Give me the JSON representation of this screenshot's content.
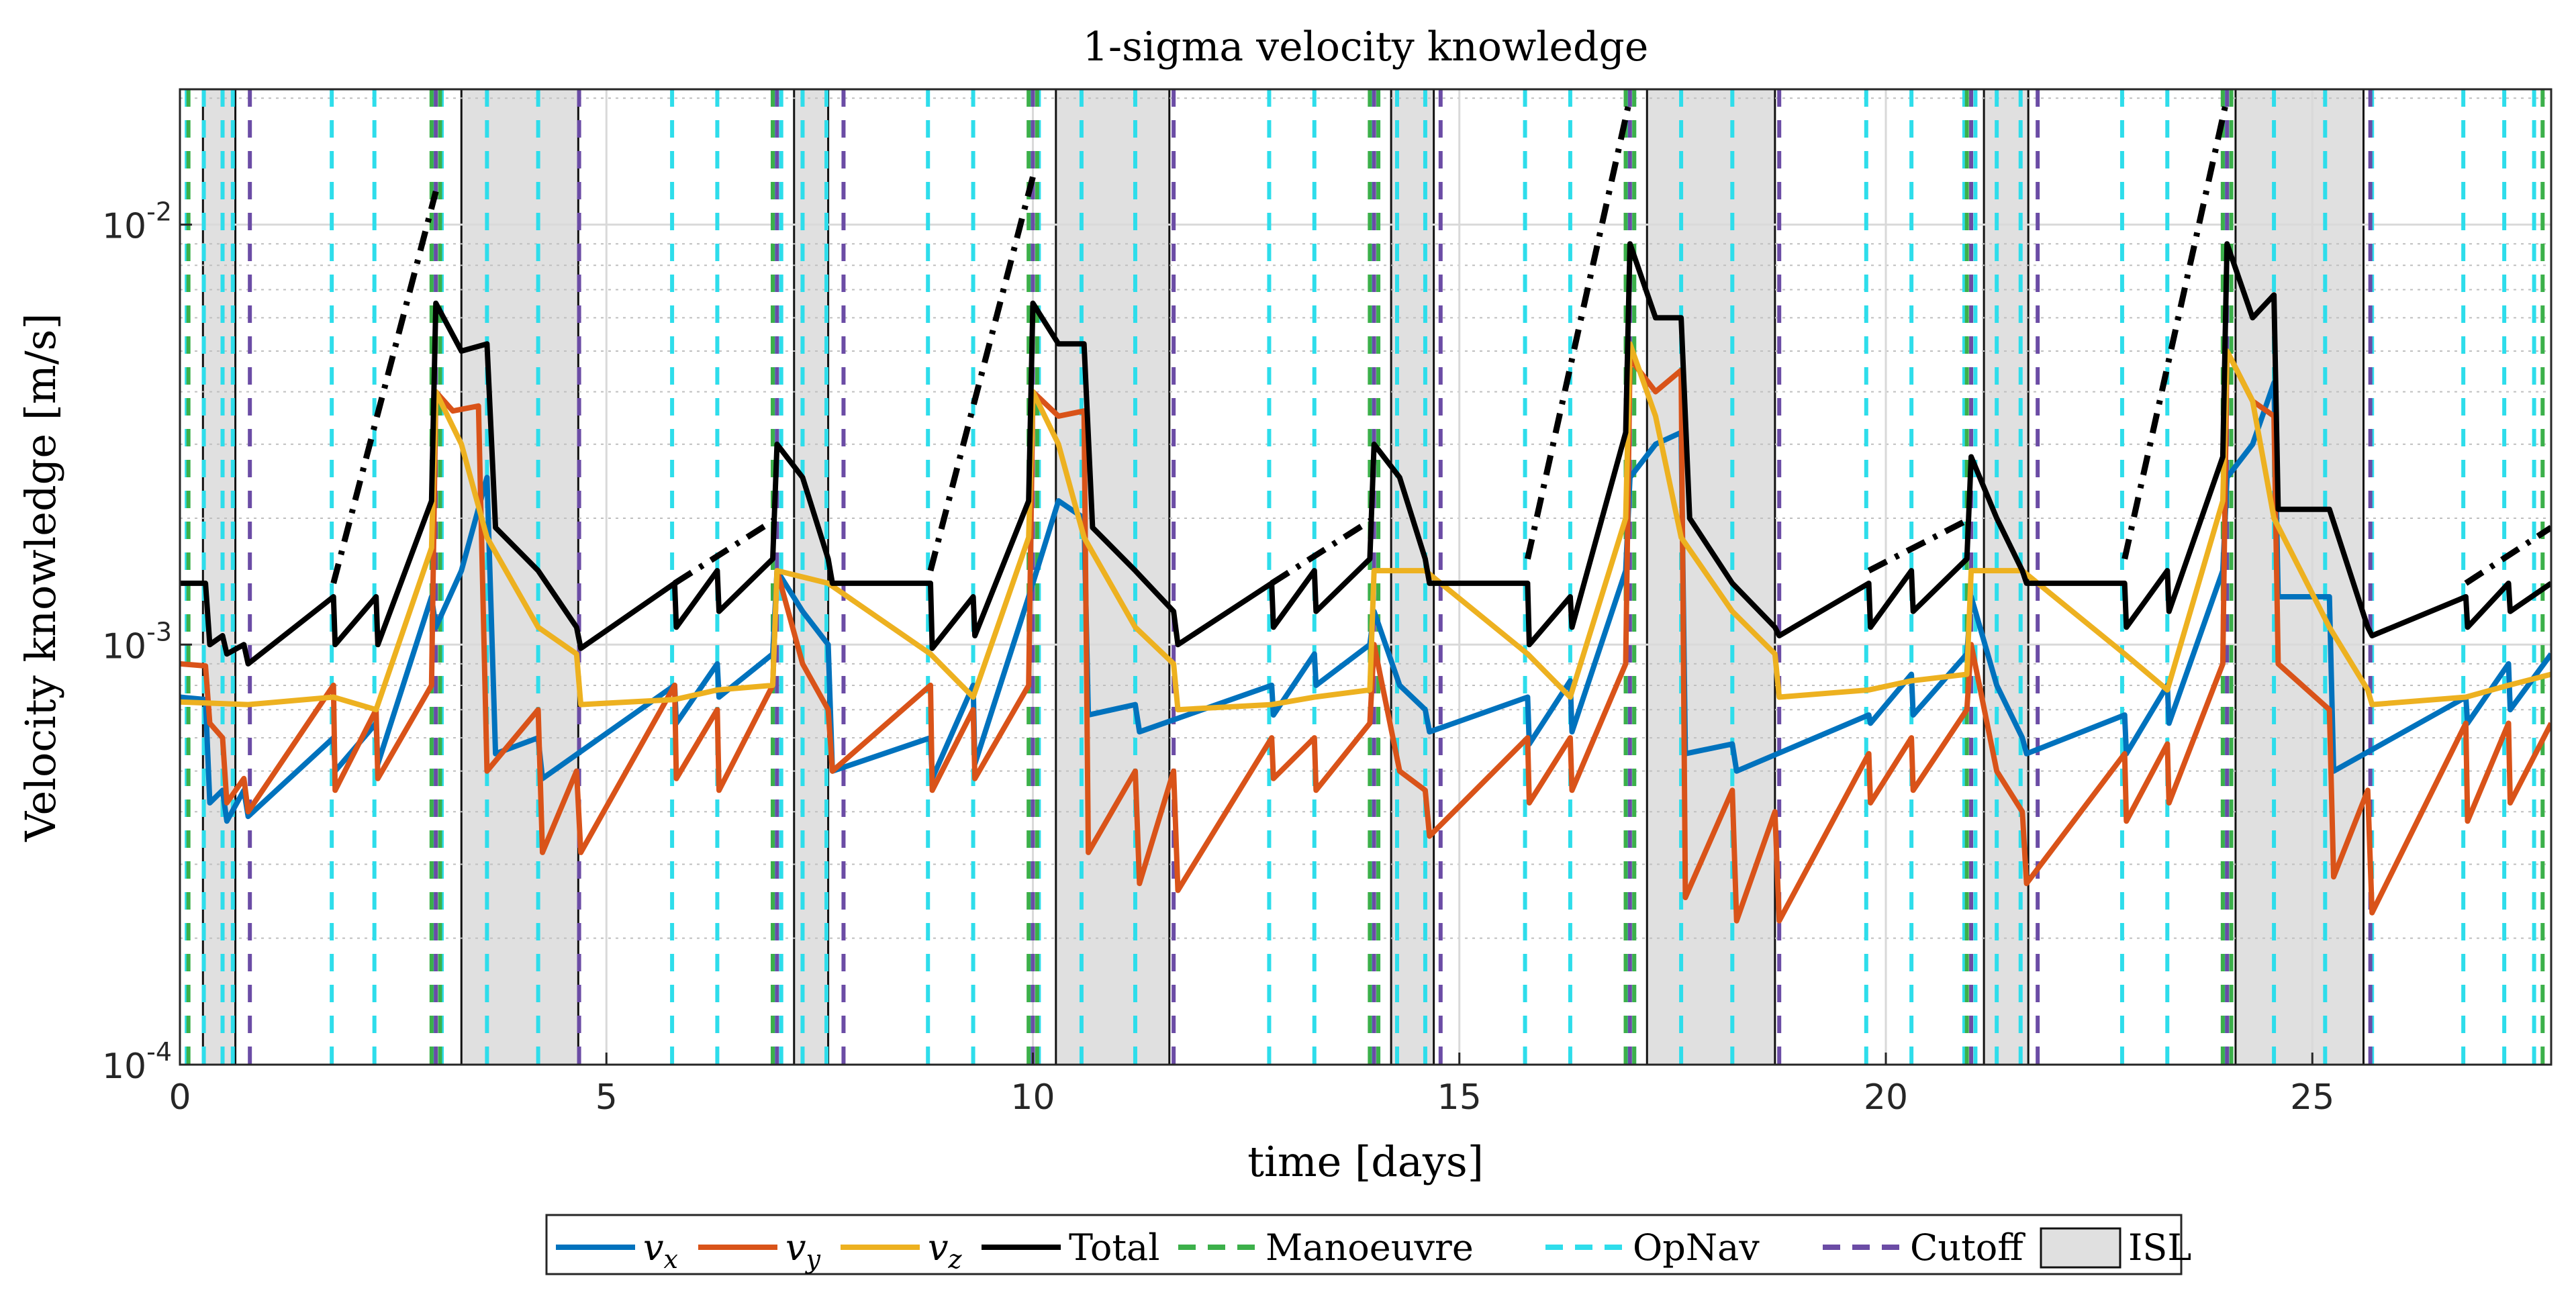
{
  "chart_data": {
    "type": "line",
    "title": "1-sigma velocity knowledge",
    "xlabel": "time [days]",
    "ylabel": "Velocity knowledge [m/s]",
    "xlim": [
      0,
      27.8
    ],
    "ylim": [
      0.0001,
      0.021
    ],
    "yscale": "log",
    "grid": true,
    "x_ticks": [
      0,
      5,
      10,
      15,
      20,
      25
    ],
    "x_tick_labels": [
      "0",
      "5",
      "10",
      "15",
      "20",
      "25"
    ],
    "y_ticks": [
      0.0001,
      0.001,
      0.01
    ],
    "y_tick_labels": [
      {
        "base": "10",
        "exp": "-4"
      },
      {
        "base": "10",
        "exp": "-3"
      },
      {
        "base": "10",
        "exp": "-2"
      }
    ],
    "legend": {
      "placement": "bottom-outside",
      "entries": [
        {
          "key": "vx",
          "label": "v",
          "sub": "x",
          "color": "#0072BD",
          "style": "solid"
        },
        {
          "key": "vy",
          "label": "v",
          "sub": "y",
          "color": "#D95319",
          "style": "solid"
        },
        {
          "key": "vz",
          "label": "v",
          "sub": "z",
          "color": "#EDB120",
          "style": "solid"
        },
        {
          "key": "total",
          "label": "Total",
          "color": "#000000",
          "style": "solid"
        },
        {
          "key": "manoeuvre",
          "label": "Manoeuvre",
          "color": "#3CB04A",
          "style": "dashed"
        },
        {
          "key": "opnav",
          "label": "OpNav",
          "color": "#2EDDEB",
          "style": "dashed"
        },
        {
          "key": "cutoff",
          "label": "Cutoff",
          "color": "#6B4CA5",
          "style": "dashed"
        },
        {
          "key": "isl",
          "label": "ISL",
          "color": "#E0E0E0",
          "style": "patch"
        }
      ]
    },
    "isl_windows": [
      [
        0.27,
        0.65
      ],
      [
        3.3,
        4.67
      ],
      [
        7.2,
        7.6
      ],
      [
        10.27,
        11.6
      ],
      [
        14.2,
        14.7
      ],
      [
        17.2,
        18.7
      ],
      [
        21.15,
        21.67
      ],
      [
        24.1,
        25.6
      ]
    ],
    "opnav_times": [
      0.08,
      0.28,
      0.5,
      0.62,
      1.78,
      2.28,
      2.97,
      3.07,
      3.6,
      4.2,
      5.77,
      6.3,
      6.97,
      7.05,
      7.3,
      7.58,
      8.77,
      9.3,
      9.97,
      10.07,
      10.57,
      11.2,
      12.77,
      13.3,
      13.97,
      14.05,
      14.27,
      14.6,
      15.77,
      16.3,
      16.97,
      17.05,
      17.6,
      18.2,
      19.77,
      20.3,
      20.92,
      21.05,
      21.3,
      21.58,
      22.77,
      23.3,
      23.97,
      24.05,
      24.55,
      25.15,
      25.7,
      26.77,
      27.25,
      27.6
    ],
    "manoeuvre_times": [
      0.1,
      2.95,
      3.05,
      6.95,
      9.95,
      10.05,
      13.95,
      14.05,
      16.95,
      17.05,
      20.95,
      23.95,
      24.05,
      27.7
    ],
    "cutoff_times": [
      0.82,
      3.0,
      4.68,
      7.0,
      7.78,
      10.0,
      11.65,
      14.0,
      14.78,
      17.0,
      18.75,
      21.0,
      21.78,
      24.0,
      25.68
    ],
    "series": [
      {
        "name": "vx",
        "x": [
          0,
          0.3,
          0.35,
          0.5,
          0.55,
          0.75,
          0.8,
          1.8,
          1.82,
          2.3,
          2.32,
          2.95,
          3.0,
          3.3,
          3.6,
          3.7,
          4.2,
          4.25,
          5.8,
          5.82,
          6.3,
          6.32,
          6.95,
          7.0,
          7.3,
          7.6,
          7.65,
          8.8,
          8.82,
          9.3,
          9.32,
          9.95,
          10.0,
          10.3,
          10.6,
          10.65,
          11.2,
          11.25,
          12.8,
          12.82,
          13.3,
          13.32,
          13.95,
          14.0,
          14.3,
          14.6,
          14.65,
          15.8,
          15.82,
          16.3,
          16.32,
          16.95,
          17.0,
          17.3,
          17.6,
          17.65,
          18.2,
          18.25,
          19.8,
          19.82,
          20.3,
          20.32,
          20.95,
          21.0,
          21.3,
          21.6,
          21.65,
          22.8,
          22.82,
          23.3,
          23.32,
          23.95,
          24.0,
          24.3,
          24.55,
          24.6,
          25.2,
          25.25,
          26.8,
          26.82,
          27.3,
          27.32,
          27.8
        ],
        "y": [
          0.00075,
          0.00074,
          0.00042,
          0.00045,
          0.00038,
          0.00045,
          0.00039,
          0.0006,
          0.0005,
          0.00065,
          0.00052,
          0.0013,
          0.0011,
          0.0015,
          0.0025,
          0.00055,
          0.0006,
          0.00048,
          0.0008,
          0.00065,
          0.0009,
          0.00075,
          0.00095,
          0.0015,
          0.0012,
          0.001,
          0.0005,
          0.0006,
          0.00048,
          0.0008,
          0.00052,
          0.0013,
          0.0014,
          0.0022,
          0.002,
          0.00068,
          0.00072,
          0.00062,
          0.0008,
          0.00068,
          0.00095,
          0.0008,
          0.001,
          0.0012,
          0.0008,
          0.0007,
          0.00062,
          0.00075,
          0.00058,
          0.00082,
          0.00062,
          0.0015,
          0.0025,
          0.003,
          0.0032,
          0.00055,
          0.00058,
          0.0005,
          0.00068,
          0.00065,
          0.00085,
          0.00068,
          0.00095,
          0.0013,
          0.0008,
          0.0006,
          0.00055,
          0.00068,
          0.00055,
          0.0008,
          0.00065,
          0.0015,
          0.0025,
          0.003,
          0.0042,
          0.0013,
          0.0013,
          0.0005,
          0.00075,
          0.00065,
          0.0009,
          0.0007,
          0.00095
        ]
      },
      {
        "name": "vy",
        "x": [
          0,
          0.3,
          0.35,
          0.5,
          0.55,
          0.75,
          0.8,
          1.8,
          1.82,
          2.3,
          2.32,
          2.95,
          3.0,
          3.2,
          3.5,
          3.6,
          4.2,
          4.25,
          4.65,
          4.7,
          5.8,
          5.82,
          6.3,
          6.32,
          6.95,
          7.0,
          7.3,
          7.6,
          7.65,
          8.8,
          8.82,
          9.3,
          9.32,
          9.95,
          10.0,
          10.3,
          10.6,
          10.65,
          11.2,
          11.25,
          11.65,
          11.7,
          12.8,
          12.82,
          13.3,
          13.32,
          13.95,
          14.0,
          14.3,
          14.6,
          14.65,
          15.8,
          15.82,
          16.3,
          16.32,
          16.95,
          17.0,
          17.3,
          17.6,
          17.65,
          18.2,
          18.25,
          18.7,
          18.75,
          19.8,
          19.82,
          20.3,
          20.32,
          20.95,
          21.0,
          21.3,
          21.6,
          21.65,
          22.8,
          22.82,
          23.3,
          23.32,
          23.95,
          24.0,
          24.3,
          24.55,
          24.6,
          25.2,
          25.25,
          25.65,
          25.7,
          26.8,
          26.82,
          27.3,
          27.32,
          27.8
        ],
        "y": [
          0.0009,
          0.00089,
          0.00065,
          0.0006,
          0.00042,
          0.00048,
          0.0004,
          0.0008,
          0.00045,
          0.0007,
          0.00048,
          0.0008,
          0.004,
          0.0036,
          0.0037,
          0.0005,
          0.0007,
          0.00032,
          0.0005,
          0.00032,
          0.0008,
          0.00048,
          0.0007,
          0.00045,
          0.0008,
          0.0015,
          0.0009,
          0.0007,
          0.0005,
          0.0008,
          0.00045,
          0.0007,
          0.00048,
          0.0008,
          0.004,
          0.0035,
          0.0036,
          0.00032,
          0.0005,
          0.00027,
          0.0005,
          0.00026,
          0.0006,
          0.00048,
          0.0006,
          0.00045,
          0.00065,
          0.001,
          0.0005,
          0.00045,
          0.00035,
          0.0006,
          0.00042,
          0.0006,
          0.00045,
          0.0009,
          0.0048,
          0.004,
          0.0045,
          0.00025,
          0.00045,
          0.00022,
          0.0004,
          0.00022,
          0.00055,
          0.00042,
          0.0006,
          0.00045,
          0.0007,
          0.001,
          0.0005,
          0.0004,
          0.00027,
          0.00055,
          0.00038,
          0.00058,
          0.00042,
          0.0009,
          0.005,
          0.0038,
          0.0035,
          0.0009,
          0.0007,
          0.00028,
          0.00045,
          0.00023,
          0.00065,
          0.00038,
          0.00065,
          0.00042,
          0.00065
        ]
      },
      {
        "name": "vz",
        "x": [
          0,
          0.8,
          1.8,
          2.3,
          2.95,
          3.0,
          3.3,
          3.6,
          4.2,
          4.65,
          4.7,
          5.8,
          6.3,
          6.95,
          7.0,
          7.6,
          8.8,
          9.3,
          9.95,
          10.0,
          10.3,
          10.6,
          11.2,
          11.65,
          11.7,
          12.8,
          13.3,
          13.95,
          14.0,
          14.6,
          15.8,
          16.3,
          16.95,
          17.0,
          17.3,
          17.6,
          18.2,
          18.7,
          18.75,
          19.8,
          20.3,
          20.95,
          21.0,
          21.6,
          22.8,
          23.3,
          23.95,
          24.0,
          24.3,
          24.55,
          25.2,
          25.65,
          25.7,
          26.8,
          27.3,
          27.8
        ],
        "y": [
          0.00073,
          0.00072,
          0.00075,
          0.0007,
          0.0017,
          0.004,
          0.003,
          0.0018,
          0.0011,
          0.00095,
          0.00072,
          0.00074,
          0.00078,
          0.0008,
          0.0015,
          0.0014,
          0.00095,
          0.00075,
          0.0018,
          0.004,
          0.003,
          0.0018,
          0.0011,
          0.0009,
          0.0007,
          0.00072,
          0.00075,
          0.00078,
          0.0015,
          0.0015,
          0.00095,
          0.00075,
          0.002,
          0.0052,
          0.0035,
          0.0018,
          0.0012,
          0.00095,
          0.00075,
          0.00078,
          0.00082,
          0.00085,
          0.0015,
          0.0015,
          0.00095,
          0.00078,
          0.0022,
          0.005,
          0.0038,
          0.002,
          0.0011,
          0.00078,
          0.00072,
          0.00075,
          0.0008,
          0.00085
        ]
      },
      {
        "name": "Total",
        "x": [
          0,
          0.3,
          0.35,
          0.5,
          0.55,
          0.75,
          0.8,
          1.8,
          1.82,
          2.3,
          2.32,
          2.95,
          3.0,
          3.3,
          3.6,
          3.7,
          4.2,
          4.65,
          4.7,
          5.8,
          5.82,
          6.3,
          6.32,
          6.95,
          7.0,
          7.3,
          7.6,
          7.65,
          8.8,
          8.82,
          9.3,
          9.32,
          9.95,
          10.0,
          10.3,
          10.6,
          10.7,
          11.2,
          11.65,
          11.7,
          12.8,
          12.82,
          13.3,
          13.32,
          13.95,
          14.0,
          14.3,
          14.6,
          14.65,
          15.8,
          15.82,
          16.3,
          16.32,
          16.95,
          17.0,
          17.3,
          17.6,
          17.7,
          18.2,
          18.7,
          18.75,
          19.8,
          19.82,
          20.3,
          20.32,
          20.95,
          21.0,
          21.3,
          21.6,
          21.65,
          22.8,
          22.82,
          23.3,
          23.32,
          23.95,
          24.0,
          24.3,
          24.55,
          24.6,
          25.2,
          25.65,
          25.7,
          26.8,
          26.82,
          27.3,
          27.32,
          27.8
        ],
        "y": [
          0.0014,
          0.0014,
          0.001,
          0.00105,
          0.00095,
          0.001,
          0.0009,
          0.0013,
          0.001,
          0.0013,
          0.001,
          0.0022,
          0.0065,
          0.005,
          0.0052,
          0.0019,
          0.0015,
          0.0011,
          0.00098,
          0.0014,
          0.0011,
          0.0015,
          0.0012,
          0.0016,
          0.003,
          0.0025,
          0.0016,
          0.0014,
          0.0014,
          0.00098,
          0.0013,
          0.00105,
          0.0022,
          0.0065,
          0.0052,
          0.0052,
          0.0019,
          0.0015,
          0.0012,
          0.001,
          0.0014,
          0.0011,
          0.0015,
          0.0012,
          0.0016,
          0.003,
          0.0025,
          0.0016,
          0.0014,
          0.0014,
          0.001,
          0.0013,
          0.0011,
          0.0032,
          0.009,
          0.006,
          0.006,
          0.002,
          0.0014,
          0.0011,
          0.00105,
          0.0014,
          0.0011,
          0.0015,
          0.0012,
          0.0016,
          0.0028,
          0.002,
          0.0015,
          0.0014,
          0.0014,
          0.0011,
          0.0015,
          0.0012,
          0.0028,
          0.009,
          0.006,
          0.0068,
          0.0021,
          0.0021,
          0.0011,
          0.00105,
          0.0013,
          0.0011,
          0.0014,
          0.0012,
          0.0014
        ]
      }
    ],
    "extrapolations": [
      {
        "x": [
          1.8,
          3.0
        ],
        "y": [
          0.0014,
          0.012
        ]
      },
      {
        "x": [
          5.8,
          7.0
        ],
        "y": [
          0.0014,
          0.002
        ]
      },
      {
        "x": [
          8.8,
          10.0
        ],
        "y": [
          0.0015,
          0.013
        ]
      },
      {
        "x": [
          12.8,
          14.0
        ],
        "y": [
          0.0014,
          0.002
        ]
      },
      {
        "x": [
          15.8,
          17.0
        ],
        "y": [
          0.0016,
          0.02
        ]
      },
      {
        "x": [
          19.8,
          21.0
        ],
        "y": [
          0.0015,
          0.002
        ]
      },
      {
        "x": [
          22.8,
          24.0
        ],
        "y": [
          0.0016,
          0.02
        ]
      },
      {
        "x": [
          26.8,
          27.8
        ],
        "y": [
          0.0014,
          0.0019
        ]
      }
    ]
  }
}
